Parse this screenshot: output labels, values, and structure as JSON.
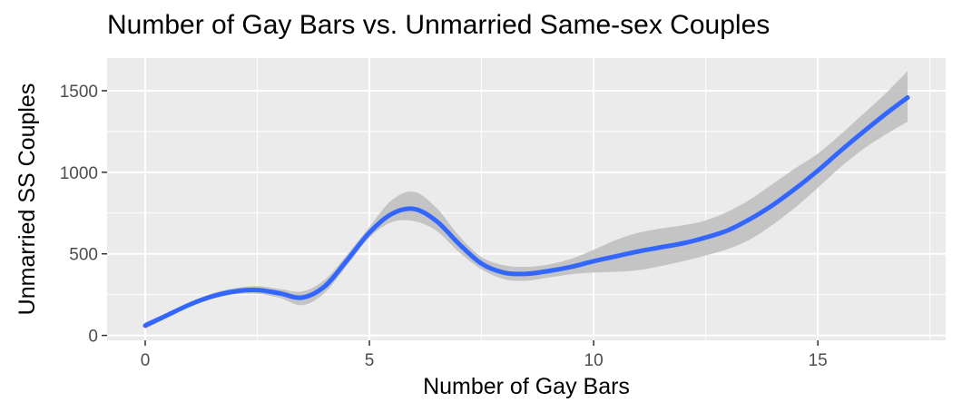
{
  "chart_data": {
    "type": "line",
    "title": "Number of Gay Bars vs. Unmarried Same-sex Couples",
    "xlabel": "Number of Gay Bars",
    "ylabel": "Unmarried SS Couples",
    "xlim": [
      -0.85,
      17.85
    ],
    "ylim": [
      -30,
      1700
    ],
    "x_ticks": [
      0,
      5,
      10,
      15
    ],
    "x_tick_labels": [
      "0",
      "5",
      "10",
      "15"
    ],
    "y_ticks": [
      0,
      500,
      1000,
      1500
    ],
    "y_tick_labels": [
      "0",
      "500",
      "1000",
      "1500"
    ],
    "grid": true,
    "legend": "none",
    "colors": {
      "panel": "#ebebeb",
      "grid_major": "#ffffff",
      "line": "#3366ff",
      "ribbon": "#bdbdbd",
      "tick": "#333333"
    },
    "series": [
      {
        "points": [
          {
            "x": 0,
            "y": 60,
            "lo": 40,
            "hi": 80
          },
          {
            "x": 0.5,
            "y": 125,
            "lo": 110,
            "hi": 140
          },
          {
            "x": 1.0,
            "y": 190,
            "lo": 175,
            "hi": 205
          },
          {
            "x": 1.5,
            "y": 240,
            "lo": 225,
            "hi": 258
          },
          {
            "x": 2.0,
            "y": 270,
            "lo": 252,
            "hi": 290
          },
          {
            "x": 2.5,
            "y": 278,
            "lo": 255,
            "hi": 302
          },
          {
            "x": 3.0,
            "y": 258,
            "lo": 230,
            "hi": 285
          },
          {
            "x": 3.5,
            "y": 232,
            "lo": 185,
            "hi": 270
          },
          {
            "x": 4.0,
            "y": 300,
            "lo": 260,
            "hi": 340
          },
          {
            "x": 4.5,
            "y": 460,
            "lo": 430,
            "hi": 495
          },
          {
            "x": 5.0,
            "y": 630,
            "lo": 600,
            "hi": 665
          },
          {
            "x": 5.5,
            "y": 745,
            "lo": 695,
            "hi": 830
          },
          {
            "x": 6.0,
            "y": 775,
            "lo": 700,
            "hi": 880
          },
          {
            "x": 6.5,
            "y": 700,
            "lo": 640,
            "hi": 780
          },
          {
            "x": 7.0,
            "y": 560,
            "lo": 510,
            "hi": 610
          },
          {
            "x": 7.5,
            "y": 440,
            "lo": 405,
            "hi": 480
          },
          {
            "x": 8.0,
            "y": 385,
            "lo": 345,
            "hi": 430
          },
          {
            "x": 8.5,
            "y": 378,
            "lo": 335,
            "hi": 420
          },
          {
            "x": 9.0,
            "y": 395,
            "lo": 355,
            "hi": 435
          },
          {
            "x": 9.5,
            "y": 420,
            "lo": 375,
            "hi": 470
          },
          {
            "x": 10.0,
            "y": 455,
            "lo": 385,
            "hi": 525
          },
          {
            "x": 10.5,
            "y": 485,
            "lo": 390,
            "hi": 585
          },
          {
            "x": 11.0,
            "y": 515,
            "lo": 400,
            "hi": 630
          },
          {
            "x": 11.5,
            "y": 540,
            "lo": 425,
            "hi": 655
          },
          {
            "x": 12.0,
            "y": 565,
            "lo": 455,
            "hi": 675
          },
          {
            "x": 12.5,
            "y": 600,
            "lo": 490,
            "hi": 705
          },
          {
            "x": 13.0,
            "y": 645,
            "lo": 530,
            "hi": 760
          },
          {
            "x": 13.5,
            "y": 715,
            "lo": 590,
            "hi": 835
          },
          {
            "x": 14.0,
            "y": 800,
            "lo": 680,
            "hi": 930
          },
          {
            "x": 14.5,
            "y": 900,
            "lo": 785,
            "hi": 1025
          },
          {
            "x": 15.0,
            "y": 1010,
            "lo": 905,
            "hi": 1115
          },
          {
            "x": 15.5,
            "y": 1130,
            "lo": 1030,
            "hi": 1230
          },
          {
            "x": 16.0,
            "y": 1245,
            "lo": 1140,
            "hi": 1355
          },
          {
            "x": 16.5,
            "y": 1355,
            "lo": 1230,
            "hi": 1480
          },
          {
            "x": 17.0,
            "y": 1458,
            "lo": 1310,
            "hi": 1620
          }
        ]
      }
    ]
  }
}
